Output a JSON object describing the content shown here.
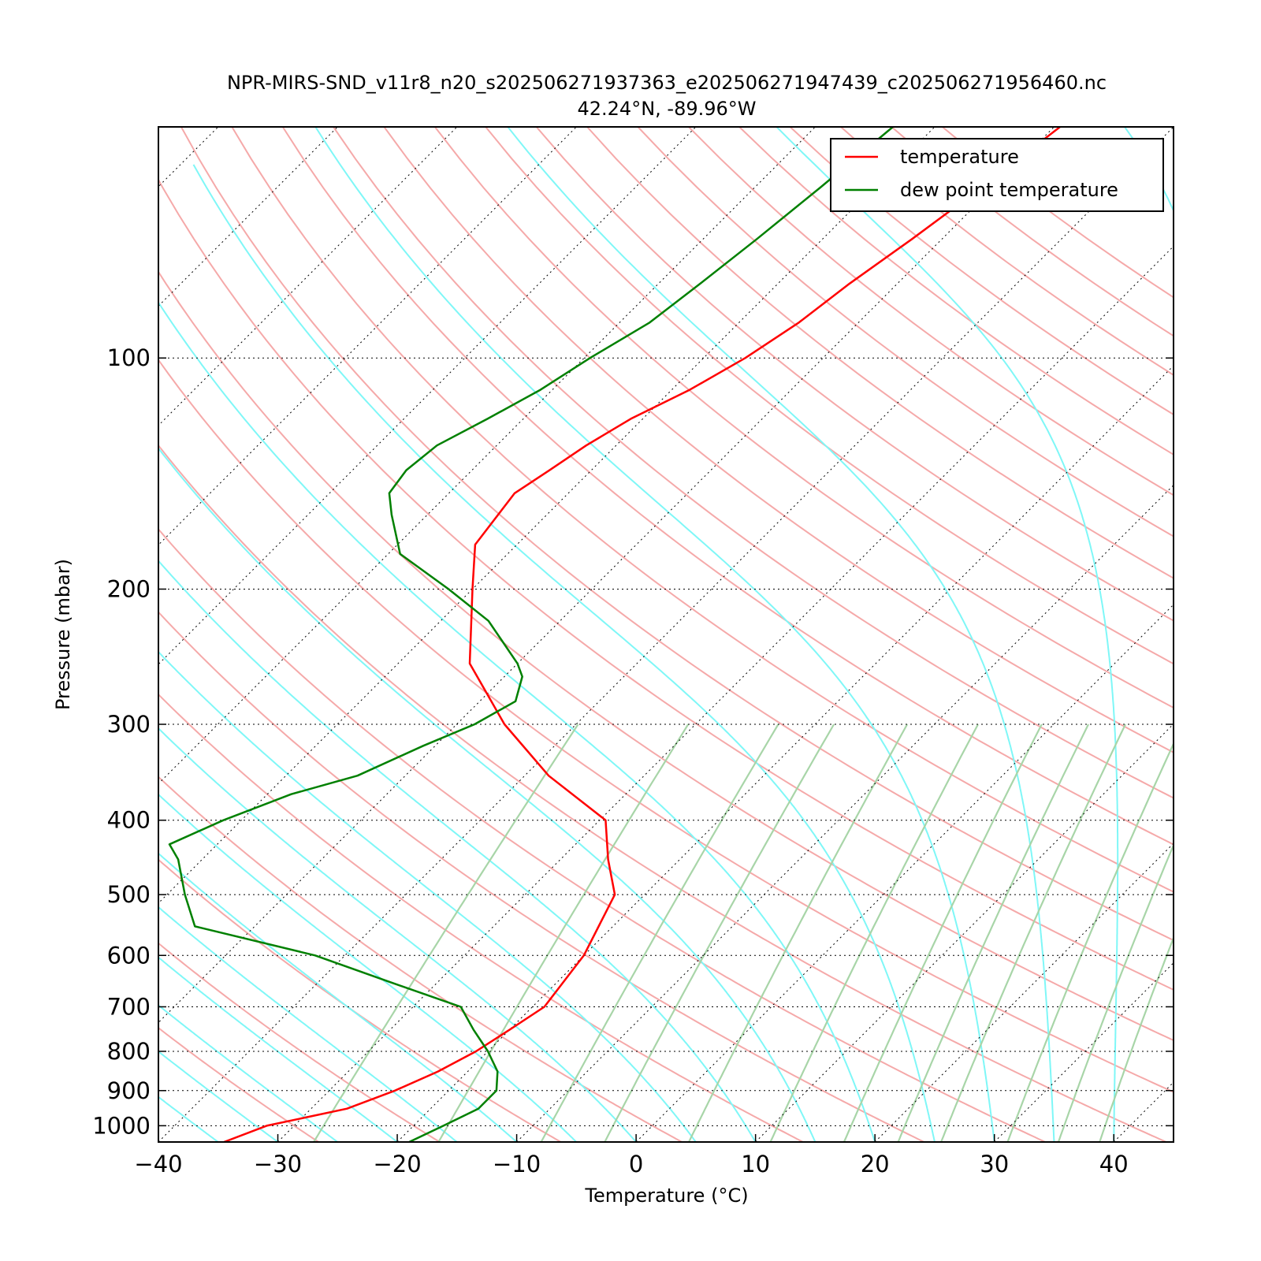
{
  "title_line1": "NPR-MIRS-SND_v11r8_n20_s202506271937363_e202506271947439_c202506271956460.nc",
  "title_line2": "42.24°N, -89.96°W",
  "chart_data": {
    "type": "line",
    "subtype": "skew-T log-P",
    "xlabel": "Temperature (°C)",
    "ylabel": "Pressure (mbar)",
    "xlim": [
      -40,
      45
    ],
    "ylim": [
      1050,
      50
    ],
    "y_scale": "log",
    "x_ticks": [
      -40,
      -30,
      -20,
      -10,
      0,
      10,
      20,
      30,
      40
    ],
    "x_tick_labels": [
      "−40",
      "−30",
      "−20",
      "−10",
      "0",
      "10",
      "20",
      "30",
      "40"
    ],
    "y_ticks": [
      100,
      200,
      300,
      400,
      500,
      600,
      700,
      800,
      900,
      1000
    ],
    "y_tick_labels": [
      "100",
      "200",
      "300",
      "400",
      "500",
      "600",
      "700",
      "800",
      "900",
      "1000"
    ],
    "grid": true,
    "legend_position": "top-right",
    "background_lines": {
      "dry_adiabats_color": "#f5a9a9",
      "moist_adiabats_color": "#7ff7f7",
      "mixing_ratio_color": "#a8d5a8",
      "isotherm_color": "#000000"
    },
    "series": [
      {
        "name": "temperature",
        "color": "#ff0000",
        "points": [
          [
            -34.5,
            1050
          ],
          [
            -32.3,
            1000
          ],
          [
            -27.0,
            950
          ],
          [
            -24.5,
            900
          ],
          [
            -22.5,
            850
          ],
          [
            -21.0,
            800
          ],
          [
            -20.0,
            750
          ],
          [
            -19.0,
            700
          ],
          [
            -20.0,
            600
          ],
          [
            -22.5,
            500
          ],
          [
            -26.0,
            450
          ],
          [
            -29.5,
            400
          ],
          [
            -38.0,
            350
          ],
          [
            -46.0,
            300
          ],
          [
            -54.0,
            250
          ],
          [
            -60.0,
            200
          ],
          [
            -63.5,
            175
          ],
          [
            -64.5,
            150
          ],
          [
            -63.5,
            140
          ],
          [
            -62.5,
            130
          ],
          [
            -61.0,
            120
          ],
          [
            -58.5,
            110
          ],
          [
            -56.5,
            100
          ],
          [
            -55.0,
            90
          ],
          [
            -54.0,
            80
          ],
          [
            -52.5,
            70
          ],
          [
            -51.0,
            60
          ],
          [
            -49.5,
            50
          ]
        ]
      },
      {
        "name": "dew point temperature",
        "color": "#008000",
        "points": [
          [
            -19.0,
            1050
          ],
          [
            -17.5,
            1000
          ],
          [
            -16.0,
            950
          ],
          [
            -16.0,
            900
          ],
          [
            -17.5,
            850
          ],
          [
            -20.0,
            800
          ],
          [
            -23.0,
            750
          ],
          [
            -26.0,
            700
          ],
          [
            -34.0,
            650
          ],
          [
            -42.5,
            600
          ],
          [
            -55.0,
            550
          ],
          [
            -58.5,
            500
          ],
          [
            -62.0,
            450
          ],
          [
            -64.0,
            430
          ],
          [
            -61.5,
            400
          ],
          [
            -58.0,
            370
          ],
          [
            -54.0,
            350
          ],
          [
            -51.0,
            320
          ],
          [
            -48.5,
            300
          ],
          [
            -47.0,
            280
          ],
          [
            -48.5,
            260
          ],
          [
            -50.0,
            250
          ],
          [
            -56.0,
            220
          ],
          [
            -62.0,
            200
          ],
          [
            -69.0,
            180
          ],
          [
            -73.0,
            160
          ],
          [
            -75.0,
            150
          ],
          [
            -75.5,
            140
          ],
          [
            -75.0,
            130
          ],
          [
            -73.0,
            120
          ],
          [
            -71.0,
            110
          ],
          [
            -69.5,
            100
          ],
          [
            -67.5,
            90
          ],
          [
            -66.5,
            80
          ],
          [
            -65.5,
            70
          ],
          [
            -64.5,
            60
          ],
          [
            -63.5,
            50
          ]
        ]
      }
    ]
  }
}
